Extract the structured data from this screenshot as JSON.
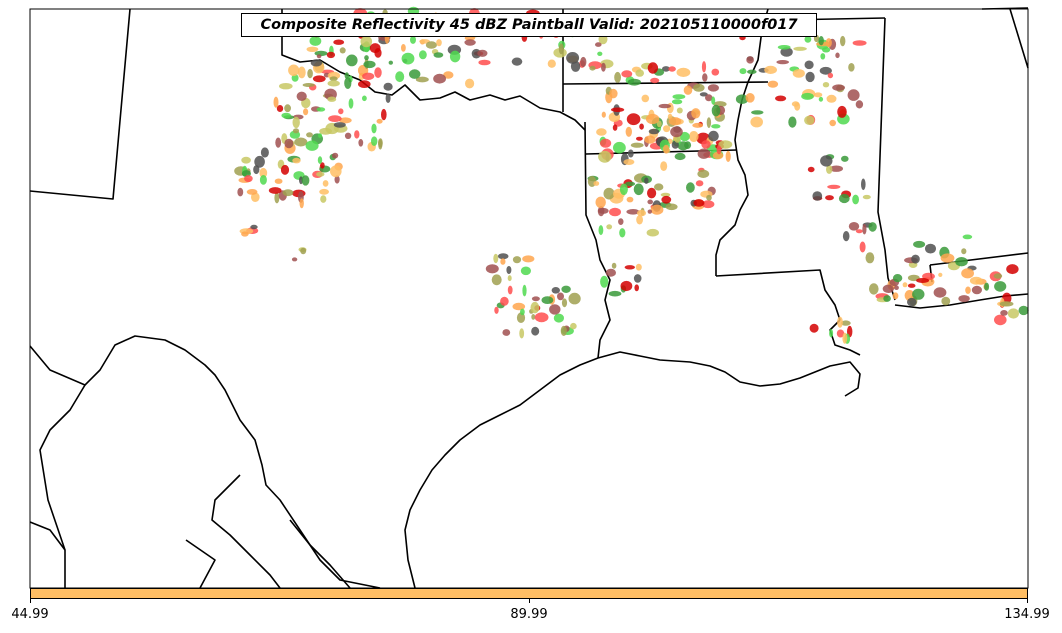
{
  "title": "Composite Reflectivity 45 dBZ Paintball Valid: 202105110000f017",
  "colorbar": {
    "color": "#ffbe64",
    "ticks": [
      "44.99",
      "89.99",
      "134.99"
    ]
  },
  "member_colors": [
    "#ff4d4d",
    "#d40000",
    "#a05050",
    "#4fd94f",
    "#3a9a3a",
    "#ffa64d",
    "#ffbe64",
    "#a0a050",
    "#505050",
    "#c8c864"
  ],
  "map": {
    "projection": "lambert",
    "region": "south-central US / Gulf coast",
    "features": [
      "state-borders",
      "coastline",
      "country-border-mexico"
    ]
  }
}
